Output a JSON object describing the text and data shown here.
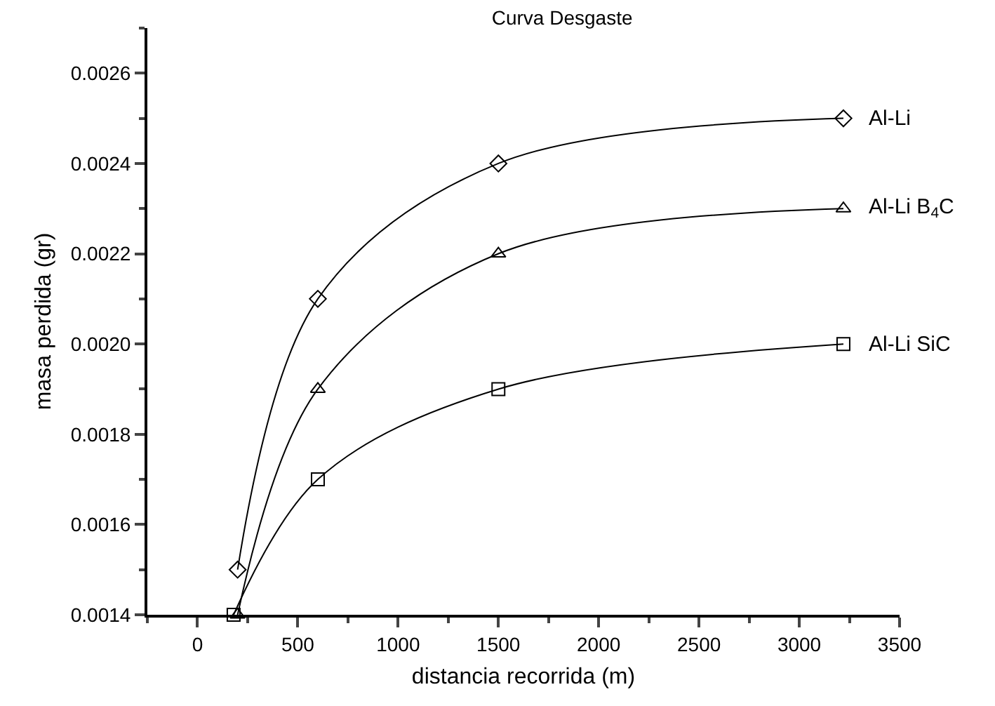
{
  "chart_data": {
    "type": "line",
    "title": "Curva Desgaste",
    "xlabel": "distancia recorrida (m)",
    "ylabel": "masa perdida (gr)",
    "x": [
      200,
      600,
      1500,
      3220
    ],
    "series": [
      {
        "name": "Al-Li",
        "color": "#000000",
        "marker": "diamond",
        "values": [
          0.0015,
          0.0021,
          0.0024,
          0.0025
        ]
      },
      {
        "name": "Al-Li B$_{4}$C",
        "color": "#000000",
        "marker": "triangle",
        "values": [
          0.0014,
          0.0019,
          0.0022,
          0.0023
        ]
      },
      {
        "name": "Al-Li SiC",
        "color": "#000000",
        "marker": "square",
        "x": [
          180,
          600,
          1500,
          3220
        ],
        "values": [
          0.0014,
          0.0017,
          0.0019,
          0.002
        ]
      }
    ],
    "xlim": [
      -250,
      3500
    ],
    "xticks": [
      0,
      500,
      1000,
      1500,
      2000,
      2500,
      3000,
      3500
    ],
    "ylim": [
      0.0014,
      0.0027
    ],
    "yticks": [
      {
        "value": 0.0014,
        "label": "0.0014"
      },
      {
        "value": 0.0016,
        "label": "0.0016"
      },
      {
        "value": 0.0018,
        "label": "0.0018"
      },
      {
        "value": 0.002,
        "label": "0.0020"
      },
      {
        "value": 0.0022,
        "label": "0.0022"
      },
      {
        "value": 0.0024,
        "label": "0.0024"
      },
      {
        "value": 0.0026,
        "label": "0.0026"
      }
    ],
    "grid": false,
    "legend": false,
    "line_style": "solid"
  }
}
